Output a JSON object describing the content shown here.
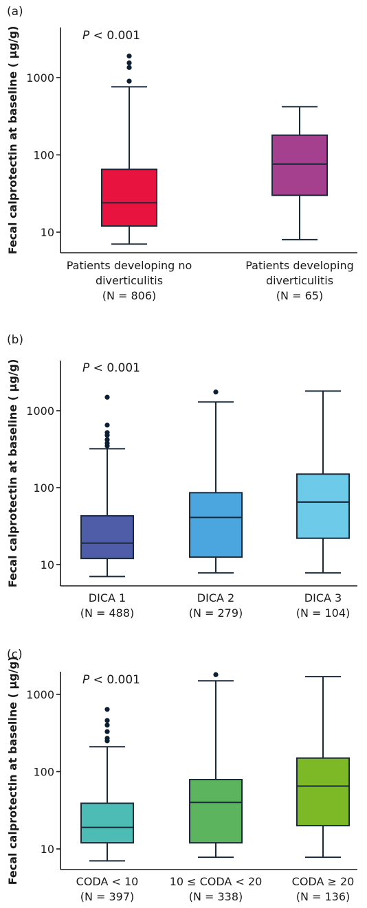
{
  "chart_data": [
    {
      "type": "box",
      "panel_label": "(a)",
      "p_value": {
        "p": "P",
        "rest": " < 0.001"
      },
      "ylabel": "Fecal calprotectin at baseline ( µg/g)",
      "yscale": "log",
      "ylim": [
        7,
        4000
      ],
      "yticks": [
        "10",
        "100",
        "1000"
      ],
      "ytick_values": [
        10,
        100,
        1000
      ],
      "categories": [
        {
          "lines": [
            "Patients developing no",
            "diverticulitis",
            "(N = 806)"
          ]
        },
        {
          "lines": [
            "Patients developing",
            "diverticulitis",
            "(N = 65)"
          ]
        }
      ],
      "boxes": [
        {
          "min": 7,
          "q1": 12,
          "median": 24,
          "q3": 65,
          "max": 760,
          "outliers": [
            900,
            1350,
            1550,
            1900
          ],
          "color": "#e8133f"
        },
        {
          "min": 8,
          "q1": 30,
          "median": 76,
          "q3": 180,
          "max": 420,
          "outliers": [],
          "color": "#a4408e"
        }
      ]
    },
    {
      "type": "box",
      "panel_label": "(b)",
      "p_value": {
        "p": "P",
        "rest": " < 0.001"
      },
      "ylabel": "Fecal calprotectin at baseline ( µg/g)",
      "yscale": "log",
      "ylim": [
        7,
        4000
      ],
      "yticks": [
        "10",
        "100",
        "1000"
      ],
      "ytick_values": [
        10,
        100,
        1000
      ],
      "categories": [
        {
          "lines": [
            "DICA 1",
            "(N = 488)"
          ]
        },
        {
          "lines": [
            "DICA 2",
            "(N = 279)"
          ]
        },
        {
          "lines": [
            "DICA 3",
            "(N = 104)"
          ]
        }
      ],
      "boxes": [
        {
          "min": 7,
          "q1": 12,
          "median": 19,
          "q3": 43,
          "max": 320,
          "outliers": [
            350,
            380,
            420,
            480,
            520,
            650,
            1500
          ],
          "color": "#4f5ca8"
        },
        {
          "min": 7.8,
          "q1": 12.5,
          "median": 41,
          "q3": 86,
          "max": 1300,
          "outliers": [
            1750
          ],
          "color": "#4ba6e0"
        },
        {
          "min": 7.8,
          "q1": 22,
          "median": 65,
          "q3": 150,
          "max": 1800,
          "outliers": [],
          "color": "#6ecae9"
        }
      ]
    },
    {
      "type": "box",
      "panel_label": "(c)",
      "p_value": {
        "p": "P",
        "rest": " < 0.001"
      },
      "ylabel": "Fecal calprotectin at baseline ( µg/g)",
      "yscale": "log",
      "ylim": [
        7,
        4000
      ],
      "yticks": [
        "10",
        "100",
        "1000"
      ],
      "ytick_values": [
        10,
        100,
        1000
      ],
      "categories": [
        {
          "lines": [
            "CODA < 10",
            "(N = 397)"
          ]
        },
        {
          "lines": [
            "10 ≤ CODA < 20",
            "(N = 338)"
          ]
        },
        {
          "lines": [
            "CODA ≥ 20",
            "(N = 136)"
          ]
        }
      ],
      "boxes": [
        {
          "min": 7,
          "q1": 12,
          "median": 19,
          "q3": 39,
          "max": 210,
          "outliers": [
            250,
            270,
            330,
            400,
            460,
            640
          ],
          "color": "#4cbcb5"
        },
        {
          "min": 7.8,
          "q1": 12,
          "median": 40,
          "q3": 79,
          "max": 1500,
          "outliers": [
            1800
          ],
          "color": "#5cb55e"
        },
        {
          "min": 7.8,
          "q1": 20,
          "median": 65,
          "q3": 150,
          "max": 1700,
          "outliers": [],
          "color": "#7db827"
        }
      ]
    }
  ]
}
